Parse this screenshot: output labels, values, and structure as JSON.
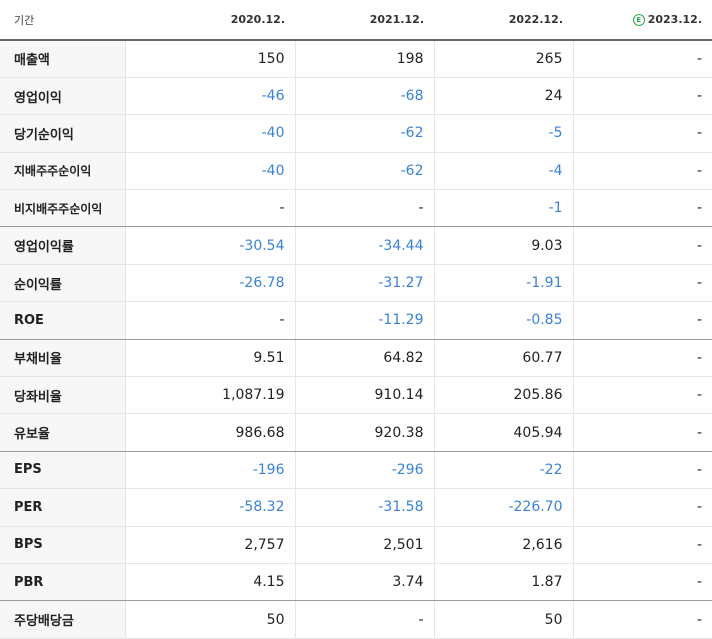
{
  "header": {
    "label": "기간",
    "periods": [
      "2020.12.",
      "2021.12.",
      "2022.12.",
      "2023.12."
    ],
    "estimate_mark": "E"
  },
  "rows": [
    {
      "label": "매출액",
      "values": [
        "150",
        "198",
        "265",
        "-"
      ],
      "neg": [
        false,
        false,
        false,
        false
      ]
    },
    {
      "label": "영업이익",
      "values": [
        "-46",
        "-68",
        "24",
        "-"
      ],
      "neg": [
        true,
        true,
        false,
        false
      ]
    },
    {
      "label": "당기순이익",
      "values": [
        "-40",
        "-62",
        "-5",
        "-"
      ],
      "neg": [
        true,
        true,
        true,
        false
      ]
    },
    {
      "label": "지배주주순이익",
      "values": [
        "-40",
        "-62",
        "-4",
        "-"
      ],
      "neg": [
        true,
        true,
        true,
        false
      ]
    },
    {
      "label": "비지배주주순이익",
      "values": [
        "-",
        "-",
        "-1",
        "-"
      ],
      "neg": [
        false,
        false,
        true,
        false
      ]
    },
    {
      "label": "영업이익률",
      "values": [
        "-30.54",
        "-34.44",
        "9.03",
        "-"
      ],
      "neg": [
        true,
        true,
        false,
        false
      ]
    },
    {
      "label": "순이익률",
      "values": [
        "-26.78",
        "-31.27",
        "-1.91",
        "-"
      ],
      "neg": [
        true,
        true,
        true,
        false
      ]
    },
    {
      "label": "ROE",
      "values": [
        "-",
        "-11.29",
        "-0.85",
        "-"
      ],
      "neg": [
        false,
        true,
        true,
        false
      ]
    },
    {
      "label": "부채비율",
      "values": [
        "9.51",
        "64.82",
        "60.77",
        "-"
      ],
      "neg": [
        false,
        false,
        false,
        false
      ]
    },
    {
      "label": "당좌비율",
      "values": [
        "1,087.19",
        "910.14",
        "205.86",
        "-"
      ],
      "neg": [
        false,
        false,
        false,
        false
      ]
    },
    {
      "label": "유보율",
      "values": [
        "986.68",
        "920.38",
        "405.94",
        "-"
      ],
      "neg": [
        false,
        false,
        false,
        false
      ]
    },
    {
      "label": "EPS",
      "values": [
        "-196",
        "-296",
        "-22",
        "-"
      ],
      "neg": [
        true,
        true,
        true,
        false
      ]
    },
    {
      "label": "PER",
      "values": [
        "-58.32",
        "-31.58",
        "-226.70",
        "-"
      ],
      "neg": [
        true,
        true,
        true,
        false
      ]
    },
    {
      "label": "BPS",
      "values": [
        "2,757",
        "2,501",
        "2,616",
        "-"
      ],
      "neg": [
        false,
        false,
        false,
        false
      ]
    },
    {
      "label": "PBR",
      "values": [
        "4.15",
        "3.74",
        "1.87",
        "-"
      ],
      "neg": [
        false,
        false,
        false,
        false
      ]
    },
    {
      "label": "주당배당금",
      "values": [
        "50",
        "-",
        "50",
        "-"
      ],
      "neg": [
        false,
        false,
        false,
        false
      ]
    }
  ]
}
